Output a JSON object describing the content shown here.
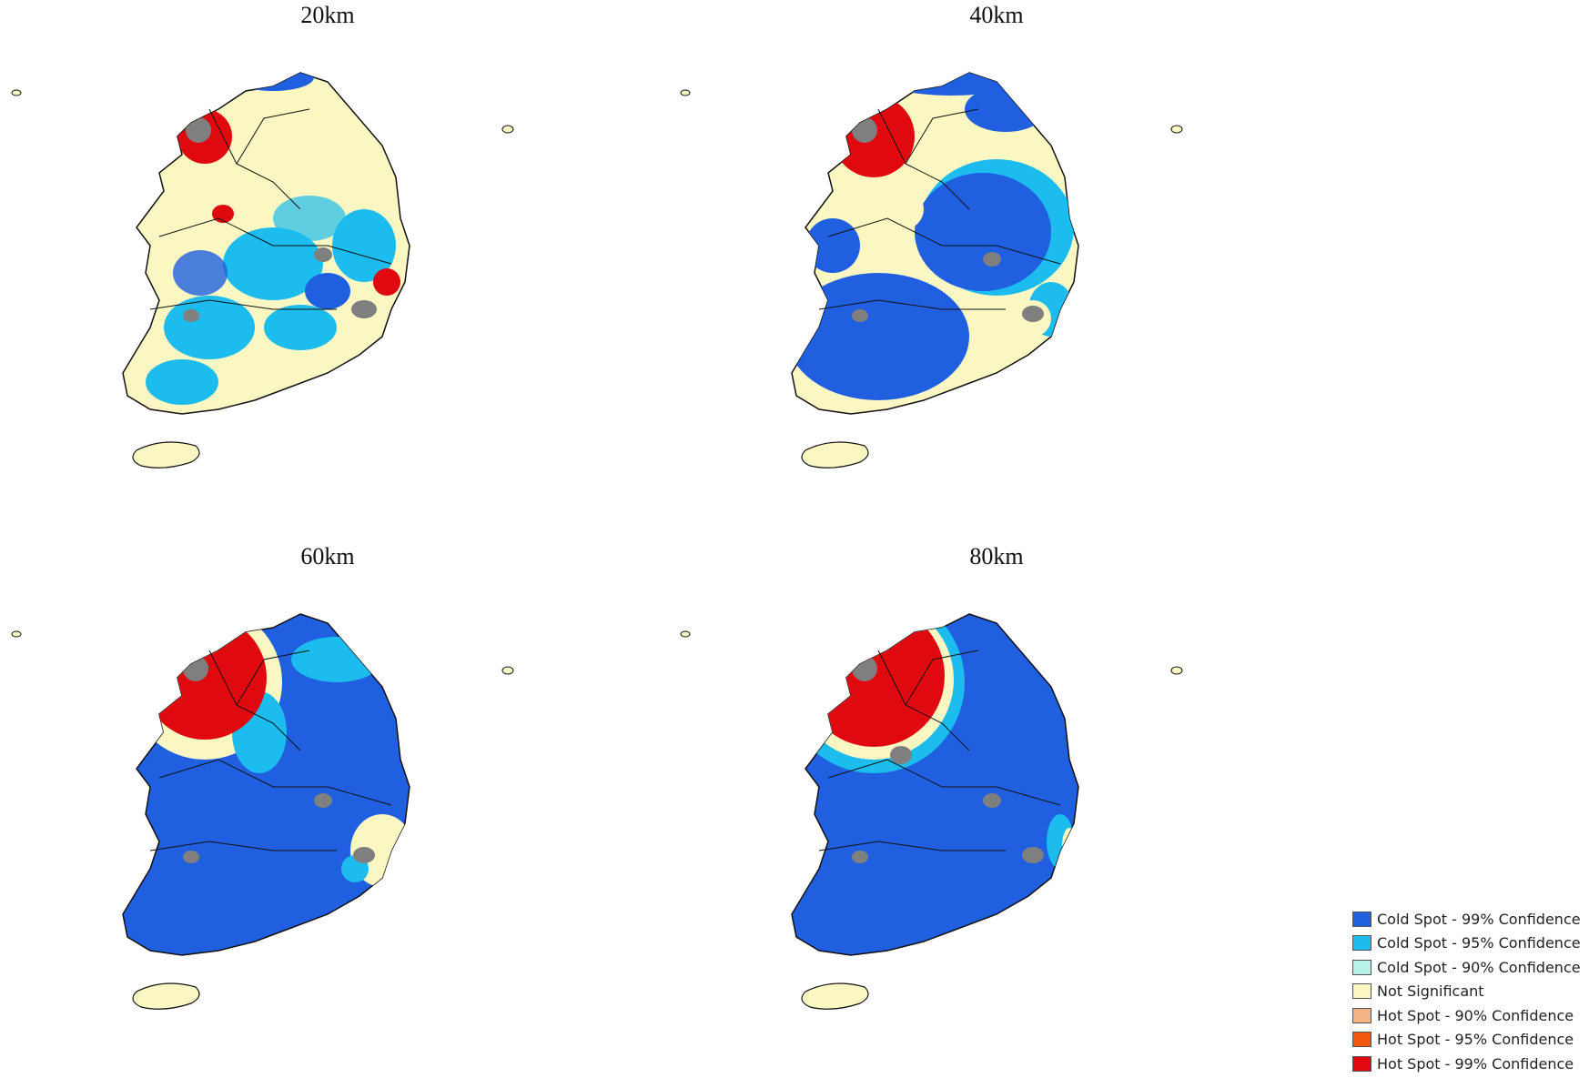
{
  "panels": [
    {
      "title": "20km",
      "hot": "small",
      "cold": "patchy"
    },
    {
      "title": "40km",
      "hot": "medium",
      "cold": "south-center"
    },
    {
      "title": "60km",
      "hot": "large",
      "cold": "most"
    },
    {
      "title": "80km",
      "hot": "large",
      "cold": "most-east"
    }
  ],
  "colors": {
    "cold99": "#1f5fe0",
    "cold95": "#1cbcee",
    "cold90": "#b6f2e6",
    "not_sig": "#fbf7c3",
    "hot90": "#f6b486",
    "hot95": "#f3560d",
    "hot99": "#e0090f",
    "urban": "#7f7f7f"
  },
  "legend": [
    {
      "label": "Cold Spot - 99% Confidence",
      "color": "#1f5fe0"
    },
    {
      "label": "Cold Spot - 95% Confidence",
      "color": "#1cbcee"
    },
    {
      "label": "Cold Spot - 90% Confidence",
      "color": "#b6f2e6"
    },
    {
      "label": "Not Significant",
      "color": "#fbf7c3"
    },
    {
      "label": "Hot Spot - 90% Confidence",
      "color": "#f6b486"
    },
    {
      "label": "Hot Spot - 95% Confidence",
      "color": "#f3560d"
    },
    {
      "label": "Hot Spot - 99% Confidence",
      "color": "#e0090f"
    }
  ]
}
